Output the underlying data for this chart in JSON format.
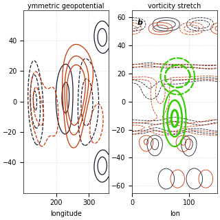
{
  "left_title": "ymmetric geopotential",
  "right_title": "vorticity stretch",
  "left_xlabel": "longitude",
  "right_xlabel": "lon",
  "left_xlim": [
    100,
    360
  ],
  "left_ylim": [
    -60,
    60
  ],
  "right_xlim": [
    0,
    150
  ],
  "right_ylim": [
    -65,
    65
  ],
  "left_xticks": [
    200,
    300
  ],
  "right_xticks": [
    0,
    100
  ],
  "left_yticks": [
    -40,
    -20,
    0,
    20,
    40
  ],
  "right_yticks": [
    -60,
    -40,
    -20,
    0,
    20,
    40,
    60
  ],
  "background_color": "#ffffff",
  "grid_color": "#cccccc",
  "dark_color": "#1a1a2e",
  "red_color": "#cc3300",
  "green_color": "#33cc00",
  "panel_label_right": "b"
}
